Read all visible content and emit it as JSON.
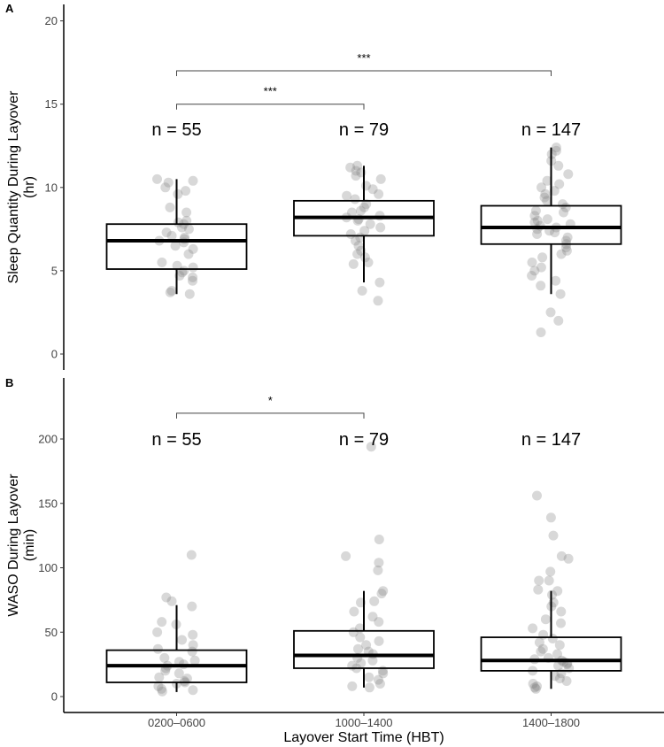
{
  "chart_data": [
    {
      "type": "box",
      "panel_label": "A",
      "title": "",
      "xlabel": "",
      "ylabel": "Sleep Quantity During Layover",
      "ylabel_units": "(hr)",
      "categories": [
        "0200–0600",
        "1000–1400",
        "1400–1800"
      ],
      "ylim": [
        0,
        20
      ],
      "yticks": [
        0,
        5,
        10,
        15,
        20
      ],
      "n_labels": [
        "n = 55",
        "n = 79",
        "n = 147"
      ],
      "n_label_y": 13.5,
      "boxes": [
        {
          "whisker_low": 3.6,
          "q1": 5.1,
          "median": 6.8,
          "q3": 7.8,
          "whisker_high": 10.5
        },
        {
          "whisker_low": 4.3,
          "q1": 7.1,
          "median": 8.2,
          "q3": 9.2,
          "whisker_high": 11.3
        },
        {
          "whisker_low": 3.6,
          "q1": 6.6,
          "median": 7.6,
          "q3": 8.9,
          "whisker_high": 12.4
        }
      ],
      "points": [
        [
          10.5,
          10.4,
          10.3,
          10.0,
          9.8,
          9.6,
          8.8,
          8.5,
          8.0,
          7.9,
          7.8,
          7.6,
          7.5,
          7.3,
          7.1,
          7.0,
          6.9,
          6.8,
          6.7,
          6.5,
          6.3,
          6.0,
          5.5,
          5.3,
          5.2,
          5.0,
          4.9,
          4.7,
          4.6,
          4.4,
          3.8,
          3.7,
          3.6
        ],
        [
          11.3,
          11.2,
          11.0,
          10.9,
          10.7,
          10.5,
          10.1,
          9.9,
          9.6,
          9.5,
          9.3,
          9.0,
          8.8,
          8.6,
          8.5,
          8.3,
          8.2,
          8.1,
          8.0,
          7.8,
          7.6,
          7.4,
          7.2,
          7.0,
          6.8,
          6.5,
          6.2,
          6.0,
          5.8,
          5.5,
          5.4,
          4.3,
          3.8,
          3.2
        ],
        [
          12.4,
          12.2,
          12.0,
          11.6,
          11.3,
          10.8,
          10.4,
          10.2,
          10.0,
          9.8,
          9.6,
          9.4,
          9.2,
          9.0,
          8.8,
          8.6,
          8.5,
          8.3,
          8.1,
          8.0,
          7.9,
          7.8,
          7.7,
          7.6,
          7.5,
          7.4,
          7.3,
          7.2,
          7.0,
          6.8,
          6.6,
          6.4,
          6.2,
          6.0,
          5.8,
          5.5,
          5.2,
          5.0,
          4.7,
          4.4,
          4.1,
          3.6,
          2.5,
          2.0,
          1.3
        ]
      ],
      "significance": [
        {
          "from": 0,
          "to": 1,
          "y": 15,
          "label": "***"
        },
        {
          "from": 0,
          "to": 2,
          "y": 17,
          "label": "***"
        }
      ],
      "colors": {
        "points": "#7f7f7f",
        "box": "#000000"
      }
    },
    {
      "type": "box",
      "panel_label": "B",
      "title": "",
      "xlabel": "Layover Start Time (HBT)",
      "ylabel": "WASO During Layover",
      "ylabel_units": "(min)",
      "categories": [
        "0200–0600",
        "1000–1400",
        "1400–1800"
      ],
      "ylim": [
        -5,
        248
      ],
      "yticks": [
        0,
        50,
        100,
        150,
        200
      ],
      "n_labels": [
        "n = 55",
        "n = 79",
        "n = 147"
      ],
      "n_label_y": 200,
      "boxes": [
        {
          "whisker_low": 3.5,
          "q1": 11,
          "median": 24,
          "q3": 36,
          "whisker_high": 71
        },
        {
          "whisker_low": 7,
          "q1": 22,
          "median": 32,
          "q3": 51,
          "whisker_high": 82
        },
        {
          "whisker_low": 6,
          "q1": 20,
          "median": 28,
          "q3": 46,
          "whisker_high": 82
        }
      ],
      "points": [
        [
          110,
          77,
          74,
          70,
          58,
          56,
          50,
          48,
          44,
          40,
          37,
          35,
          30,
          28,
          27,
          25,
          24,
          22,
          20,
          18,
          15,
          14,
          12,
          11,
          10,
          8,
          6,
          5,
          4
        ],
        [
          194,
          122,
          109,
          104,
          98,
          82,
          80,
          74,
          73,
          66,
          62,
          58,
          53,
          50,
          46,
          43,
          40,
          37,
          35,
          33,
          30,
          28,
          26,
          24,
          22,
          20,
          18,
          15,
          13,
          10,
          8,
          7
        ],
        [
          156,
          139,
          125,
          109,
          107,
          97,
          90,
          90,
          83,
          82,
          79,
          73,
          70,
          66,
          60,
          57,
          53,
          48,
          45,
          42,
          40,
          37,
          35,
          33,
          30,
          29,
          28,
          27,
          26,
          25,
          24,
          22,
          20,
          18,
          16,
          14,
          12,
          10,
          8,
          7,
          6
        ]
      ],
      "significance": [
        {
          "from": 0,
          "to": 1,
          "y": 220,
          "label": "*"
        }
      ],
      "colors": {
        "points": "#7f7f7f",
        "box": "#000000"
      }
    }
  ]
}
